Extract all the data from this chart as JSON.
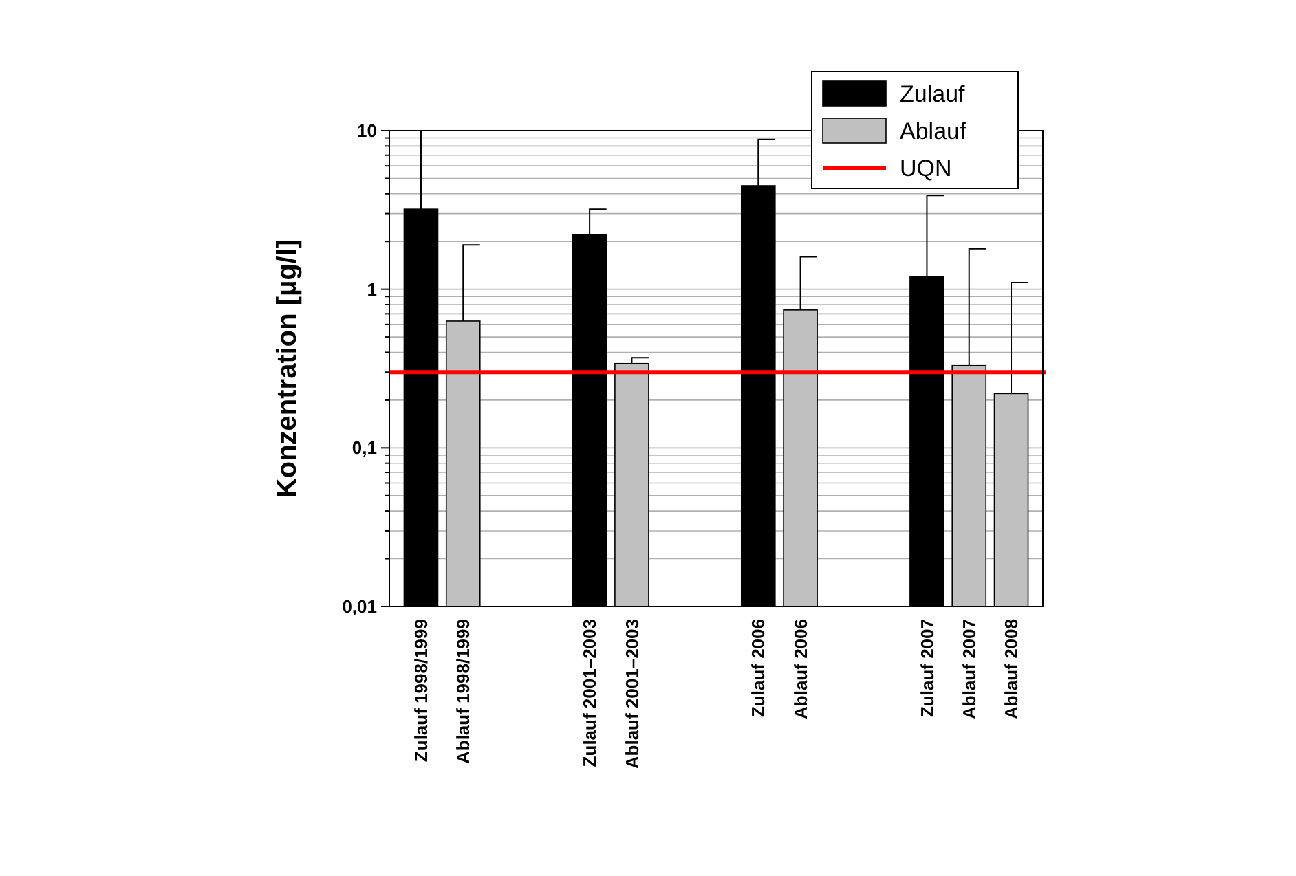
{
  "chart_data": {
    "type": "bar",
    "ylabel": "Konzentration [µg/l]",
    "categories": [
      "Zulauf 1998/1999",
      "Ablauf 1998/1999",
      null,
      null,
      "Zulauf 2001–2003",
      "Ablauf 2001–2003",
      null,
      null,
      "Zulauf 2006",
      "Ablauf 2006",
      null,
      null,
      "Zulauf 2007",
      "Ablauf 2007",
      "Ablauf 2008"
    ],
    "series": [
      {
        "name": "Zulauf",
        "color": "#000000",
        "values": [
          3.2,
          null,
          null,
          null,
          2.2,
          null,
          null,
          null,
          4.5,
          null,
          null,
          null,
          1.2,
          null,
          null
        ],
        "errors": [
          [
            3.2,
            10
          ],
          null,
          null,
          null,
          [
            2.2,
            3.2
          ],
          null,
          null,
          null,
          [
            4.5,
            8.8
          ],
          null,
          null,
          null,
          [
            1.2,
            3.9
          ],
          null,
          null
        ]
      },
      {
        "name": "Ablauf",
        "color": "#c0c0c0",
        "values": [
          null,
          0.63,
          null,
          null,
          null,
          0.34,
          null,
          null,
          null,
          0.74,
          null,
          null,
          null,
          0.33,
          0.22
        ],
        "errors": [
          null,
          [
            0.63,
            1.9
          ],
          null,
          null,
          null,
          [
            0.34,
            0.37
          ],
          null,
          null,
          null,
          [
            0.74,
            1.6
          ],
          null,
          null,
          null,
          [
            0.33,
            1.8
          ],
          [
            0.22,
            1.1
          ]
        ]
      }
    ],
    "ref_lines": [
      {
        "axis": "y",
        "value": 0.3,
        "label": "UQN",
        "color": "#ff0000"
      }
    ],
    "log": "y",
    "ylim": [
      0.01,
      10
    ],
    "yticks": [
      {
        "value": 0.01,
        "label": "0,01"
      },
      {
        "value": 0.02,
        "label": null
      },
      {
        "value": 0.03,
        "label": null
      },
      {
        "value": 0.04,
        "label": null
      },
      {
        "value": 0.05,
        "label": null
      },
      {
        "value": 0.06,
        "label": null
      },
      {
        "value": 0.07,
        "label": null
      },
      {
        "value": 0.08,
        "label": null
      },
      {
        "value": 0.09,
        "label": null
      },
      {
        "value": 0.1,
        "label": "0,1"
      },
      {
        "value": 0.2,
        "label": null
      },
      {
        "value": 0.3,
        "label": null
      },
      {
        "value": 0.4,
        "label": null
      },
      {
        "value": 0.5,
        "label": null
      },
      {
        "value": 0.6,
        "label": null
      },
      {
        "value": 0.7,
        "label": null
      },
      {
        "value": 0.8,
        "label": null
      },
      {
        "value": 0.9,
        "label": null
      },
      1,
      {
        "value": 2,
        "label": null
      },
      {
        "value": 3,
        "label": null
      },
      {
        "value": 4,
        "label": null
      },
      {
        "value": 5,
        "label": null
      },
      {
        "value": 6,
        "label": null
      },
      {
        "value": 7,
        "label": null
      },
      {
        "value": 8,
        "label": null
      },
      {
        "value": 9,
        "label": null
      },
      10
    ],
    "grid": "y",
    "legend": "top right"
  }
}
